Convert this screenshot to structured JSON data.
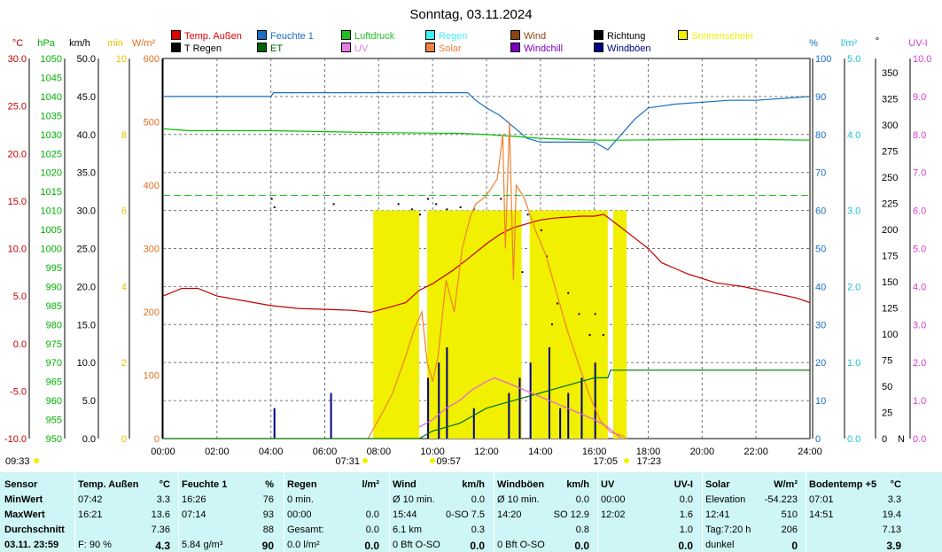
{
  "title": "Sonntag, 03.11.2024",
  "colors": {
    "temp": "#c00000",
    "hum": "#1a6fc4",
    "press": "#00c000",
    "solar": "#f08030",
    "rain_bar": "#f0f000",
    "gust": "#000080",
    "wind": "#7a3a00",
    "dir": "#000000",
    "et": "#007000",
    "uv": "#e060e0",
    "train": "#e8b000"
  },
  "legend": [
    {
      "label": "Temp. Außen",
      "color": "#e00000"
    },
    {
      "label": "Feuchte 1",
      "color": "#1a6fc4"
    },
    {
      "label": "Luftdruck",
      "color": "#20c020"
    },
    {
      "label": "Regen",
      "color": "#40f0f0"
    },
    {
      "label": "Wind",
      "color": "#8b4513"
    },
    {
      "label": "Richtung",
      "color": "#000000"
    },
    {
      "label": "Sonnenschein",
      "color": "#f0f000"
    },
    {
      "label": "T Regen",
      "color": "#000000"
    },
    {
      "label": "ET",
      "color": "#006000"
    },
    {
      "label": "UV",
      "color": "#e080e0"
    },
    {
      "label": "Solar",
      "color": "#f08040"
    },
    {
      "label": "Windchill",
      "color": "#8000c0"
    },
    {
      "label": "Windböen",
      "color": "#000080"
    }
  ],
  "chart_data": {
    "type": "line",
    "title": "Sonntag, 03.11.2024",
    "x_ticks": [
      "00:00",
      "02:00",
      "04:00",
      "06:00",
      "08:00",
      "10:00",
      "12:00",
      "14:00",
      "16:00",
      "18:00",
      "20:00",
      "22:00",
      "24:00"
    ],
    "x_range_hours": [
      0,
      24
    ],
    "axes": {
      "temp": {
        "unit": "°C",
        "range": [
          -10,
          30
        ],
        "ticks": [
          "30.0",
          "25.0",
          "20.0",
          "15.0",
          "10.0",
          "5.0",
          "0.0",
          "-5.0",
          "-10.0"
        ]
      },
      "press": {
        "unit": "hPa",
        "range": [
          950,
          1050
        ],
        "ticks": [
          "1050",
          "1045",
          "1040",
          "1035",
          "1030",
          "1025",
          "1020",
          "1015",
          "1010",
          "1005",
          "1000",
          "995",
          "990",
          "985",
          "980",
          "975",
          "970",
          "965",
          "960",
          "955",
          "950"
        ]
      },
      "wind": {
        "unit": "km/h",
        "range": [
          0,
          50
        ],
        "ticks": [
          "50.0",
          "45.0",
          "40.0",
          "35.0",
          "30.0",
          "25.0",
          "20.0",
          "15.0",
          "10.0",
          "5.0",
          "0.0"
        ]
      },
      "minutes": {
        "unit": "min",
        "range": [
          0,
          10
        ],
        "ticks": [
          "10",
          "8",
          "6",
          "4",
          "2",
          "0"
        ]
      },
      "solar": {
        "unit": "W/m²",
        "range": [
          0,
          600
        ],
        "ticks": [
          "600",
          "500",
          "400",
          "300",
          "200",
          "100",
          "0"
        ]
      },
      "hum": {
        "unit": "%",
        "range": [
          0,
          100
        ],
        "ticks": [
          "100",
          "90",
          "80",
          "70",
          "60",
          "50",
          "40",
          "30",
          "20",
          "10",
          "0"
        ]
      },
      "rain": {
        "unit": "l/m²",
        "range": [
          0,
          5
        ],
        "ticks": [
          "5.0",
          "4.0",
          "3.0",
          "2.0",
          "1.0",
          "0.0"
        ]
      },
      "dir": {
        "unit": "°",
        "range": [
          0,
          360
        ],
        "ticks": [
          "350",
          "325",
          "300",
          "275",
          "250",
          "225",
          "200",
          "175",
          "150",
          "125",
          "100",
          "75",
          "50",
          "25",
          "0",
          "N"
        ]
      },
      "uv": {
        "unit": "UV-I",
        "range": [
          0,
          10
        ],
        "ticks": [
          "10.0",
          "9.0",
          "8.0",
          "7.0",
          "6.0",
          "5.0",
          "4.0",
          "3.0",
          "2.0",
          "1.0",
          "0.0"
        ]
      }
    },
    "series": [
      {
        "name": "Temp. Außen",
        "axis": "temp",
        "points": [
          [
            0,
            5.0
          ],
          [
            0.7,
            5.8
          ],
          [
            1.3,
            5.8
          ],
          [
            2,
            5.0
          ],
          [
            3,
            4.5
          ],
          [
            4,
            4.0
          ],
          [
            5,
            3.7
          ],
          [
            6,
            3.6
          ],
          [
            7,
            3.5
          ],
          [
            7.7,
            3.3
          ],
          [
            8.5,
            3.9
          ],
          [
            9,
            4.3
          ],
          [
            9.5,
            5.6
          ],
          [
            10,
            6.3
          ],
          [
            10.7,
            7.6
          ],
          [
            11.3,
            8.9
          ],
          [
            12,
            10.5
          ],
          [
            12.5,
            11.5
          ],
          [
            13,
            12.2
          ],
          [
            13.5,
            12.6
          ],
          [
            14,
            13.0
          ],
          [
            14.5,
            13.2
          ],
          [
            15,
            13.3
          ],
          [
            15.5,
            13.4
          ],
          [
            16,
            13.4
          ],
          [
            16.35,
            13.6
          ],
          [
            17,
            12.2
          ],
          [
            17.5,
            11.1
          ],
          [
            18,
            10.0
          ],
          [
            18.5,
            8.5
          ],
          [
            19.5,
            7.3
          ],
          [
            20.5,
            6.4
          ],
          [
            21.5,
            6.0
          ],
          [
            22.5,
            5.4
          ],
          [
            23.5,
            4.8
          ],
          [
            24,
            4.3
          ]
        ]
      },
      {
        "name": "Feuchte 1",
        "axis": "hum",
        "points": [
          [
            0,
            90
          ],
          [
            4,
            90
          ],
          [
            4.1,
            91
          ],
          [
            11,
            91
          ],
          [
            11.3,
            91
          ],
          [
            11.6,
            89
          ],
          [
            12,
            87
          ],
          [
            12.5,
            85
          ],
          [
            13,
            82
          ],
          [
            13.5,
            79
          ],
          [
            14,
            78
          ],
          [
            15,
            78
          ],
          [
            16,
            78
          ],
          [
            16.5,
            76
          ],
          [
            17,
            80
          ],
          [
            17.5,
            84
          ],
          [
            18,
            87
          ],
          [
            19,
            88
          ],
          [
            21,
            89
          ],
          [
            22,
            89
          ],
          [
            24,
            90
          ]
        ]
      },
      {
        "name": "Luftdruck",
        "axis": "press",
        "points": [
          [
            0,
            1031.5
          ],
          [
            1,
            1031
          ],
          [
            4,
            1031
          ],
          [
            8,
            1030.5
          ],
          [
            11,
            1030.3
          ],
          [
            12,
            1030
          ],
          [
            13,
            1029.5
          ],
          [
            14,
            1029
          ],
          [
            16,
            1028.5
          ],
          [
            17,
            1028.5
          ],
          [
            20,
            1028.7
          ],
          [
            22,
            1028.7
          ],
          [
            24,
            1028.5
          ]
        ]
      },
      {
        "name": "Solar",
        "axis": "solar",
        "points": [
          [
            7.6,
            0
          ],
          [
            8,
            30
          ],
          [
            8.5,
            70
          ],
          [
            9,
            130
          ],
          [
            9.3,
            170
          ],
          [
            9.6,
            200
          ],
          [
            9.8,
            120
          ],
          [
            10,
            90
          ],
          [
            10.2,
            130
          ],
          [
            10.5,
            250
          ],
          [
            10.8,
            200
          ],
          [
            11.1,
            300
          ],
          [
            11.4,
            350
          ],
          [
            11.6,
            370
          ],
          [
            11.9,
            380
          ],
          [
            12.1,
            390
          ],
          [
            12.4,
            410
          ],
          [
            12.6,
            480
          ],
          [
            12.7,
            300
          ],
          [
            12.85,
            500
          ],
          [
            13,
            250
          ],
          [
            13.1,
            400
          ],
          [
            13.4,
            380
          ],
          [
            13.8,
            330
          ],
          [
            14.2,
            290
          ],
          [
            14.6,
            230
          ],
          [
            15.0,
            170
          ],
          [
            15.4,
            120
          ],
          [
            15.8,
            70
          ],
          [
            16.2,
            30
          ],
          [
            16.6,
            10
          ],
          [
            17.0,
            5
          ],
          [
            17.2,
            0
          ]
        ]
      },
      {
        "name": "ET",
        "axis": "rain",
        "points": [
          [
            0,
            0
          ],
          [
            9.5,
            0
          ],
          [
            10,
            0.1
          ],
          [
            11,
            0.2
          ],
          [
            12,
            0.4
          ],
          [
            13,
            0.5
          ],
          [
            14,
            0.6
          ],
          [
            15,
            0.7
          ],
          [
            16,
            0.8
          ],
          [
            16.5,
            0.8
          ],
          [
            16.6,
            0.9
          ],
          [
            24,
            0.9
          ]
        ]
      },
      {
        "name": "UV",
        "axis": "uv",
        "points": [
          [
            9.5,
            0.3
          ],
          [
            10,
            0.5
          ],
          [
            10.5,
            0.8
          ],
          [
            11,
            1.0
          ],
          [
            11.5,
            1.3
          ],
          [
            12.0,
            1.5
          ],
          [
            12.3,
            1.6
          ],
          [
            13,
            1.4
          ],
          [
            14,
            1.1
          ],
          [
            15,
            0.8
          ],
          [
            16,
            0.5
          ],
          [
            16.5,
            0.3
          ],
          [
            17,
            0
          ]
        ]
      }
    ],
    "sunshine_periods": [
      [
        7.8,
        9.5
      ],
      [
        9.8,
        13.3
      ],
      [
        13.6,
        16.5
      ],
      [
        16.7,
        17.2
      ]
    ],
    "gust_bars_hours": [
      4.1,
      6.2,
      9.8,
      10.2,
      10.5,
      11.5,
      12.8,
      13.2,
      13.6,
      14.3,
      14.7,
      15.0,
      15.5,
      16.0
    ],
    "direction_dots": [
      [
        4.0,
        230
      ],
      [
        4.1,
        222
      ],
      [
        6.3,
        225
      ],
      [
        8.7,
        225
      ],
      [
        9.2,
        220
      ],
      [
        9.5,
        215
      ],
      [
        9.8,
        230
      ],
      [
        10.1,
        225
      ],
      [
        10.5,
        220
      ],
      [
        11.0,
        222
      ],
      [
        11.5,
        220
      ],
      [
        12.5,
        230
      ],
      [
        13.5,
        215
      ],
      [
        14.0,
        200
      ],
      [
        14.2,
        175
      ],
      [
        14.6,
        130
      ],
      [
        15.0,
        140
      ],
      [
        15.4,
        120
      ],
      [
        15.8,
        100
      ],
      [
        16.0,
        120
      ],
      [
        16.3,
        100
      ],
      [
        13.3,
        160
      ],
      [
        14.4,
        110
      ]
    ],
    "markers": [
      {
        "label": "09:33",
        "axis": "x",
        "value": "09:33"
      },
      {
        "label": "07:31",
        "axis": "x",
        "value": "07:31"
      },
      {
        "label": "09:57",
        "axis": "x",
        "value": "09:57"
      },
      {
        "label": "17:05",
        "axis": "x",
        "value": "17:05"
      },
      {
        "label": "17:23",
        "axis": "x",
        "value": "17:23"
      }
    ]
  },
  "panel": {
    "sensor": {
      "header": "Sensor",
      "rows": [
        "MinWert",
        "MaxWert",
        "Durchschnitt",
        "03.11. 23:59"
      ]
    },
    "temp": {
      "header": "Temp. Außen",
      "unit": "°C",
      "rows": [
        [
          "07:42",
          "3.3"
        ],
        [
          "16:21",
          "13.6"
        ],
        [
          "",
          "7.36"
        ],
        [
          "F: 90 %",
          "4.3"
        ]
      ]
    },
    "hum": {
      "header": "Feuchte 1",
      "unit": "%",
      "rows": [
        [
          "16:26",
          "76"
        ],
        [
          "07:14",
          "93"
        ],
        [
          "",
          "88"
        ],
        [
          "5.84 g/m³",
          "90"
        ]
      ]
    },
    "rain": {
      "header": "Regen",
      "unit": "l/m²",
      "rows": [
        [
          "0 min.",
          ""
        ],
        [
          "00:00",
          "0.0"
        ],
        [
          "Gesamt:",
          "0.0"
        ],
        [
          "0.0 l/m²",
          "0.0"
        ]
      ]
    },
    "wind": {
      "header": "Wind",
      "unit": "km/h",
      "rows": [
        [
          "Ø 10 min.",
          "0.0"
        ],
        [
          "15:44",
          "0-SO 7.5"
        ],
        [
          "6.1 km",
          "0.3"
        ],
        [
          "0 Bft O-SO",
          "0.0"
        ]
      ]
    },
    "gust": {
      "header": "Windböen",
      "unit": "km/h",
      "rows": [
        [
          "Ø 10 min.",
          "0.0"
        ],
        [
          "14:20",
          "SO 12.9"
        ],
        [
          "",
          "0.8"
        ],
        [
          "0 Bft O-SO",
          "0.0"
        ]
      ]
    },
    "uv": {
      "header": "UV",
      "unit": "UV-I",
      "rows": [
        [
          "00:00",
          "0.0"
        ],
        [
          "12:02",
          "1.6"
        ],
        [
          "",
          "1.0"
        ],
        [
          "",
          "0.0"
        ]
      ]
    },
    "solar": {
      "header": "Solar",
      "unit": "W/m²",
      "rows": [
        [
          "Elevation",
          "-54.223"
        ],
        [
          "12:41",
          "510"
        ],
        [
          "Tag:7:20 h",
          "206"
        ],
        [
          "dunkel",
          "0"
        ]
      ]
    },
    "soil": {
      "header": "Bodentemp +5",
      "unit": "°C",
      "rows": [
        [
          "07:01",
          "3.3"
        ],
        [
          "14:51",
          "19.4"
        ],
        [
          "",
          "7.13"
        ],
        [
          "",
          "3.9"
        ]
      ]
    }
  }
}
